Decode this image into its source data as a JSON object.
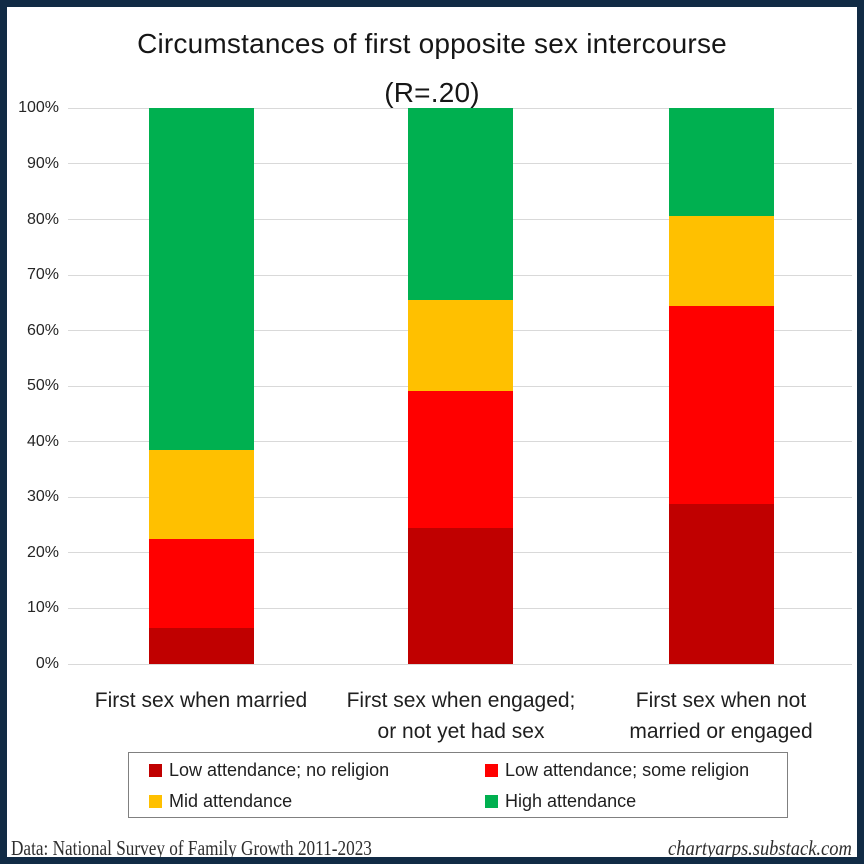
{
  "title": {
    "line1": "Circumstances of first opposite sex intercourse",
    "line2": "(R=.20)"
  },
  "chart_data": {
    "type": "bar",
    "stacked": true,
    "title": "Circumstances of first opposite sex intercourse (R=.20)",
    "categories": [
      [
        "First sex when married"
      ],
      [
        "First sex when engaged;",
        "or not yet had sex"
      ],
      [
        "First sex when not",
        "married or engaged"
      ]
    ],
    "series": [
      {
        "name": "Low attendance; no religion",
        "color": "#C00000",
        "values": [
          6.5,
          24.4,
          28.8
        ]
      },
      {
        "name": "Low attendance; some religion",
        "color": "#FF0000",
        "values": [
          16.0,
          24.8,
          35.6
        ]
      },
      {
        "name": "Mid attendance",
        "color": "#FFC000",
        "values": [
          16.0,
          16.4,
          16.3
        ]
      },
      {
        "name": "High attendance",
        "color": "#00B050",
        "values": [
          61.5,
          34.4,
          19.3
        ]
      }
    ],
    "ylim": [
      0,
      100
    ],
    "yticks": [
      0,
      10,
      20,
      30,
      40,
      50,
      60,
      70,
      80,
      90,
      100
    ],
    "ytick_suffix": "%",
    "grid": "horizontal",
    "legend_position": "bottom-box"
  },
  "footer": {
    "source": "Data: National Survey of Family Growth 2011-2023",
    "credit": "chartyarps.substack.com"
  },
  "colors": {
    "frame_border": "#112B45",
    "gridline": "#D9D9D9",
    "legend_border": "#808080"
  }
}
